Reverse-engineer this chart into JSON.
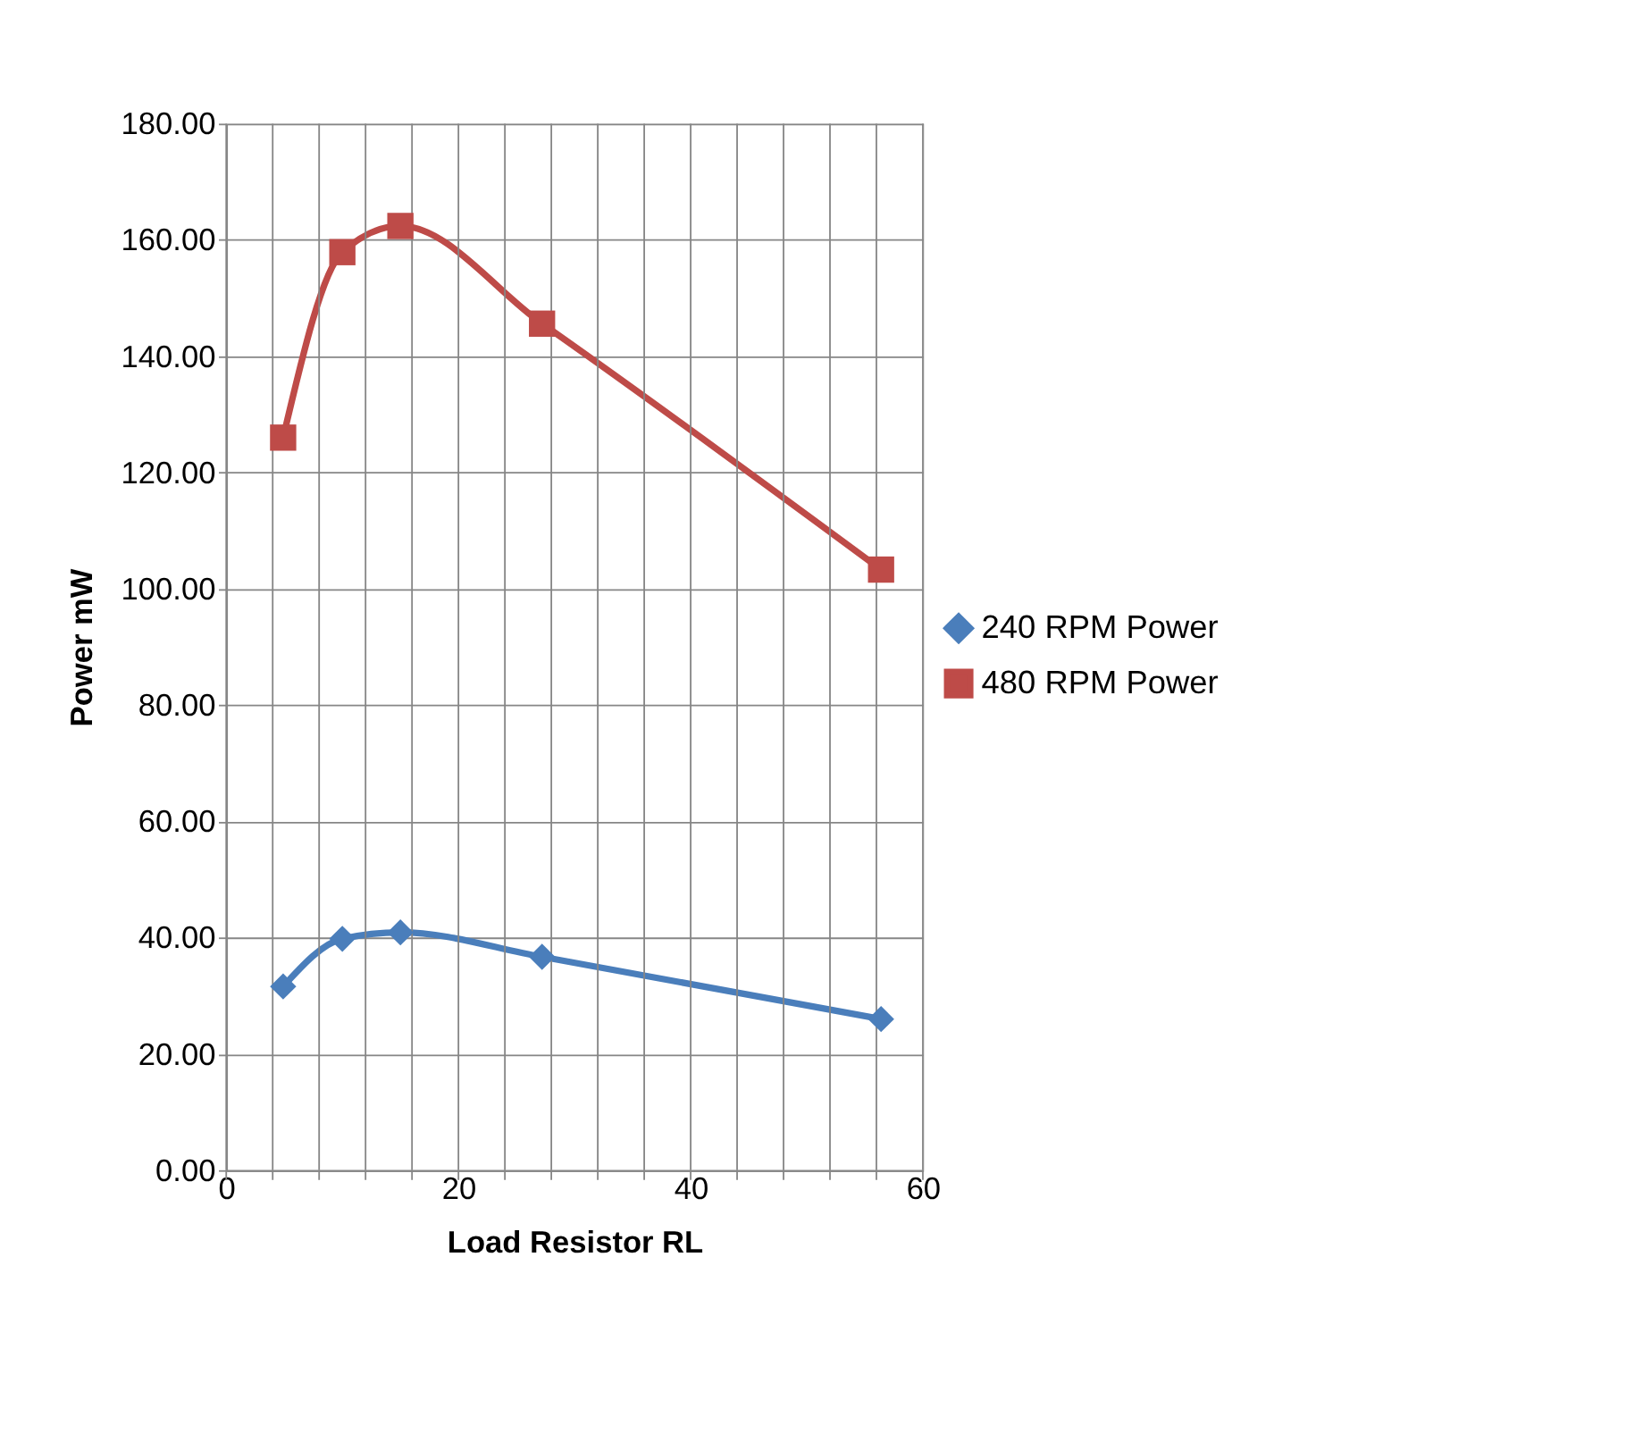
{
  "chart_data": {
    "type": "line",
    "xlabel": "Load Resistor RL",
    "ylabel": "Power mW",
    "x": [
      4.9,
      10,
      15,
      27.2,
      56.4
    ],
    "series": [
      {
        "name": "240 RPM Power",
        "color": "#4a7ebb",
        "marker": "diamond",
        "values": [
          31.6,
          39.8,
          40.9,
          36.7,
          26.0
        ]
      },
      {
        "name": "480 RPM Power",
        "color": "#be4b48",
        "marker": "square",
        "values": [
          126.0,
          157.9,
          162.4,
          145.6,
          103.3
        ]
      }
    ],
    "xlim": [
      0,
      60
    ],
    "xticks": [
      0,
      {
        "value": 4,
        "label": null
      },
      {
        "value": 8,
        "label": null
      },
      {
        "value": 12,
        "label": null
      },
      {
        "value": 16,
        "label": null
      },
      20,
      {
        "value": 24,
        "label": null
      },
      {
        "value": 28,
        "label": null
      },
      {
        "value": 32,
        "label": null
      },
      {
        "value": 36,
        "label": null
      },
      40,
      {
        "value": 44,
        "label": null
      },
      {
        "value": 48,
        "label": null
      },
      {
        "value": 52,
        "label": null
      },
      {
        "value": 56,
        "label": null
      },
      60
    ],
    "ylim": [
      0,
      180
    ],
    "yticks": [
      {
        "value": 0,
        "label": "0.00"
      },
      {
        "value": 20,
        "label": "20.00"
      },
      {
        "value": 40,
        "label": "40.00"
      },
      {
        "value": 60,
        "label": "60.00"
      },
      {
        "value": 80,
        "label": "80.00"
      },
      {
        "value": 100,
        "label": "100.00"
      },
      {
        "value": 120,
        "label": "120.00"
      },
      {
        "value": 140,
        "label": "140.00"
      },
      {
        "value": 160,
        "label": "160.00"
      },
      {
        "value": 180,
        "label": "180.00"
      }
    ],
    "grid": true,
    "legend": "right",
    "line_style": "solid"
  }
}
